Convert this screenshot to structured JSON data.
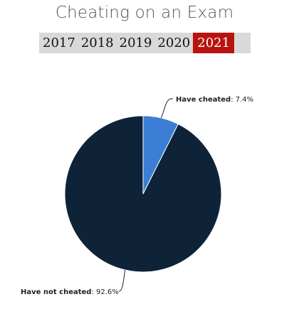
{
  "title": "Cheating on an Exam",
  "years": [
    {
      "label": "2017",
      "active": false
    },
    {
      "label": "2018",
      "active": false
    },
    {
      "label": "2019",
      "active": false
    },
    {
      "label": "2020",
      "active": false
    },
    {
      "label": "2021",
      "active": true
    }
  ],
  "colors": {
    "active_tab": "#b8140f",
    "tab_bar": "#d9d9d9"
  },
  "chart_data": {
    "type": "pie",
    "slices": [
      {
        "label": "Have cheated",
        "value": 7.4,
        "display": "7.4%",
        "color": "#3a7fd5"
      },
      {
        "label": "Have not cheated",
        "value": 92.6,
        "display": "92.6%",
        "color": "#0e2238"
      }
    ]
  }
}
